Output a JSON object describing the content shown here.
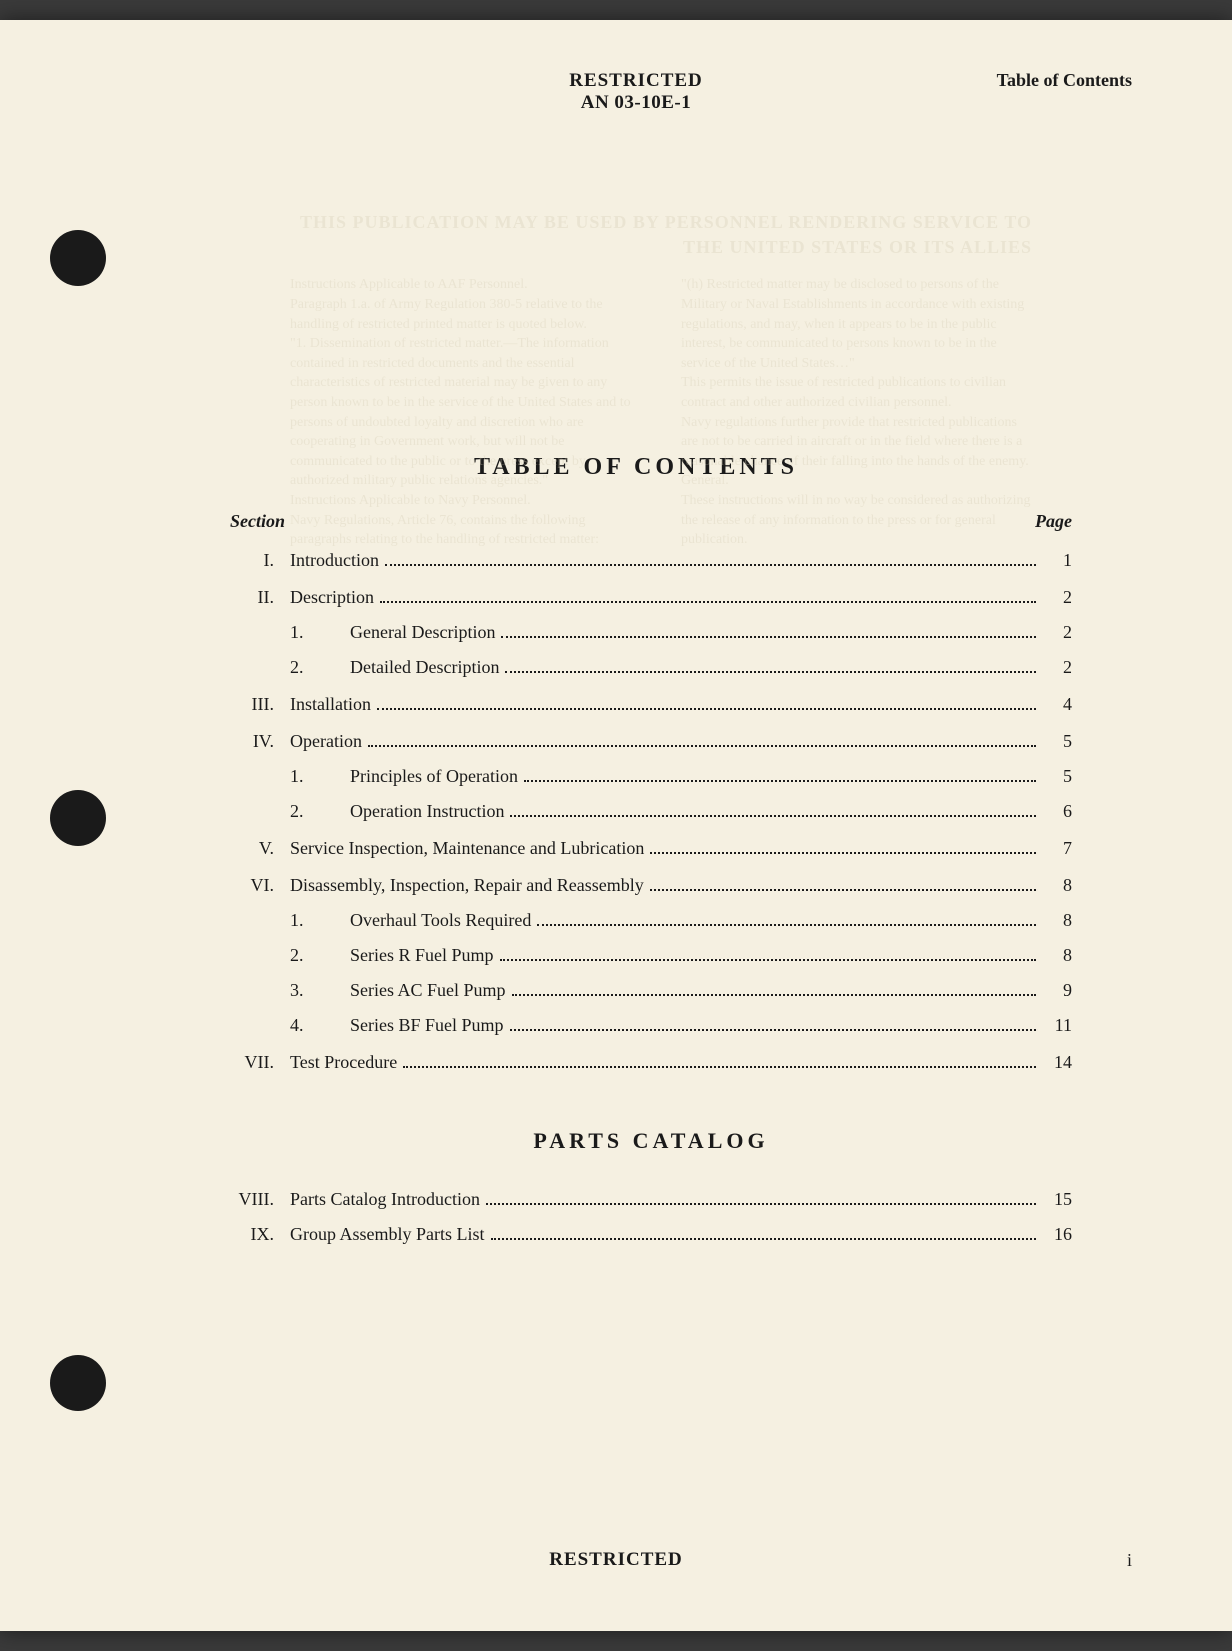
{
  "header": {
    "restricted": "RESTRICTED",
    "doc_number": "AN 03-10E-1",
    "right_label": "Table of Contents"
  },
  "faded": {
    "title": "THIS PUBLICATION MAY BE USED BY PERSONNEL RENDERING SERVICE TO THE UNITED STATES OR ITS ALLIES",
    "left1": "Instructions Applicable to AAF Personnel.",
    "left2": "Paragraph 1.a. of Army Regulation 380-5 relative to the handling of restricted printed matter is quoted below.",
    "left3": "\"1. Dissemination of restricted matter.—The information contained in restricted documents and the essential characteristics of restricted material may be given to any person known to be in the service of the United States and to persons of undoubted loyalty and discretion who are cooperating in Government work, but will not be communicated to the public or to the press except by authorized military public relations agencies.\"",
    "left4": "Instructions Applicable to Navy Personnel.",
    "left5": "Navy Regulations, Article 76, contains the following paragraphs relating to the handling of restricted matter:",
    "right1": "\"(h) Restricted matter may be disclosed to persons of the Military or Naval Establishments in accordance with existing regulations, and may, when it appears to be in the public interest, be communicated to persons known to be in the service of the United States…\"",
    "right2": "This permits the issue of restricted publications to civilian contract and other authorized civilian personnel.",
    "right3": "Navy regulations further provide that restricted publications are not to be carried in aircraft or in the field where there is a reasonable chance of their falling into the hands of the enemy.",
    "right4": "General.",
    "right5": "These instructions will in no way be considered as authorizing the release of any information to the press or for general publication."
  },
  "titles": {
    "toc": "TABLE OF CONTENTS",
    "parts": "PARTS CATALOG"
  },
  "toc_header": {
    "section": "Section",
    "page": "Page"
  },
  "toc": [
    {
      "num": "I.",
      "label": "Introduction",
      "page": "1",
      "spaced": false
    },
    {
      "num": "II.",
      "label": "Description",
      "page": "2",
      "spaced": true
    },
    {
      "sub": "1.",
      "label": "General Description",
      "page": "2"
    },
    {
      "sub": "2.",
      "label": "Detailed Description",
      "page": "2"
    },
    {
      "num": "III.",
      "label": "Installation",
      "page": "4",
      "spaced": true
    },
    {
      "num": "IV.",
      "label": "Operation",
      "page": "5",
      "spaced": true
    },
    {
      "sub": "1.",
      "label": "Principles of Operation",
      "page": "5"
    },
    {
      "sub": "2.",
      "label": "Operation Instruction",
      "page": "6"
    },
    {
      "num": "V.",
      "label": "Service Inspection, Maintenance and Lubrication",
      "page": "7",
      "spaced": true
    },
    {
      "num": "VI.",
      "label": "Disassembly, Inspection, Repair and Reassembly",
      "page": "8",
      "spaced": true
    },
    {
      "sub": "1.",
      "label": "Overhaul Tools Required",
      "page": "8"
    },
    {
      "sub": "2.",
      "label": "Series R Fuel Pump",
      "page": "8"
    },
    {
      "sub": "3.",
      "label": "Series AC Fuel Pump",
      "page": "9"
    },
    {
      "sub": "4.",
      "label": "Series BF Fuel Pump",
      "page": "11"
    },
    {
      "num": "VII.",
      "label": "Test Procedure",
      "page": "14",
      "spaced": true
    }
  ],
  "parts_toc": [
    {
      "num": "VIII.",
      "label": "Parts Catalog Introduction",
      "page": "15"
    },
    {
      "num": "IX.",
      "label": "Group Assembly Parts List",
      "page": "16"
    }
  ],
  "footer": {
    "restricted": "RESTRICTED",
    "page_num": "i"
  },
  "colors": {
    "page_bg": "#f5f0e1",
    "text": "#1a1a1a",
    "hole": "#1a1a1a",
    "faded": "#d8d0b8",
    "outer_bg": "#3a3a3a"
  }
}
